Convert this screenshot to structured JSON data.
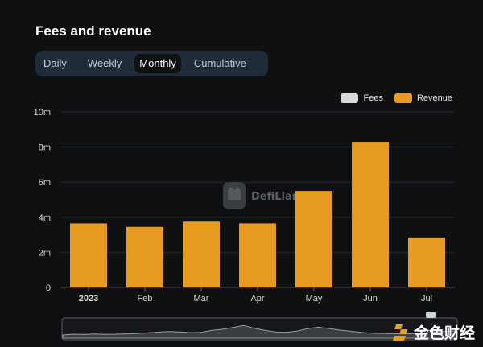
{
  "header": {
    "title": "Fees and revenue"
  },
  "tabs": [
    {
      "label": "Daily"
    },
    {
      "label": "Weekly"
    },
    {
      "label": "Monthly",
      "active": true
    },
    {
      "label": "Cumulative"
    }
  ],
  "legend": [
    {
      "label": "Fees",
      "color": "#d9d9d9"
    },
    {
      "label": "Revenue",
      "color": "#e79b21"
    }
  ],
  "watermark": {
    "text": "DefiLlama"
  },
  "brand": {
    "text": "金色财经"
  },
  "colors": {
    "background": "#0f1012",
    "bar": "#e79b21",
    "tabs_bg": "#1f2b39"
  },
  "chart_data": {
    "type": "bar",
    "categories": [
      "2023",
      "Feb",
      "Mar",
      "Apr",
      "May",
      "Jun",
      "Jul"
    ],
    "series": [
      {
        "name": "Revenue",
        "values": [
          3.65,
          3.45,
          3.75,
          3.65,
          5.5,
          8.3,
          2.85
        ]
      }
    ],
    "yticks": [
      {
        "value": 0,
        "label": "0"
      },
      {
        "value": 2,
        "label": "2m"
      },
      {
        "value": 4,
        "label": "4m"
      },
      {
        "value": 6,
        "label": "6m"
      },
      {
        "value": 8,
        "label": "8m"
      },
      {
        "value": 10,
        "label": "10m"
      }
    ],
    "ylim": [
      0,
      10
    ],
    "grid": true,
    "legend_position": "top-right"
  }
}
